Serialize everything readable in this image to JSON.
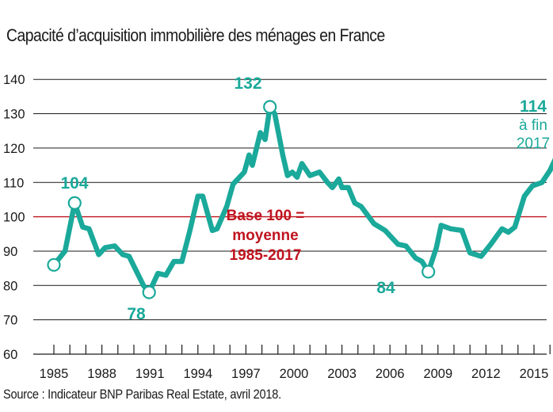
{
  "chart_data": {
    "type": "line",
    "title": "Capacité d’acquisition immobilière des ménages en France",
    "source": "Source : Indicateur BNP Paribas Real Estate, avril 2018.",
    "ylim": [
      60,
      140
    ],
    "yticks": [
      60,
      70,
      80,
      90,
      100,
      110,
      120,
      130,
      140
    ],
    "xlim": [
      1985,
      2018.5
    ],
    "xticks": [
      1985,
      1988,
      1991,
      1994,
      1997,
      2000,
      2003,
      2006,
      2009,
      2012,
      2015,
      2018
    ],
    "reference_line": {
      "y": 100,
      "color": "#c0141f"
    },
    "colors": {
      "line": "#1aa99a",
      "reference": "#c0141f",
      "grid": "#1a1a1a"
    },
    "series": [
      {
        "points": [
          [
            1985,
            86
          ],
          [
            1985.7,
            90
          ],
          [
            1986.3,
            104
          ],
          [
            1986.8,
            97
          ],
          [
            1987.2,
            96.5
          ],
          [
            1987.8,
            89
          ],
          [
            1988.2,
            91
          ],
          [
            1988.8,
            91.5
          ],
          [
            1989.3,
            89
          ],
          [
            1989.7,
            88.5
          ],
          [
            1990.6,
            80
          ],
          [
            1990.95,
            78
          ],
          [
            1991.5,
            83.5
          ],
          [
            1992.0,
            83
          ],
          [
            1992.5,
            87
          ],
          [
            1993.0,
            87
          ],
          [
            1993.5,
            96
          ],
          [
            1994.0,
            106
          ],
          [
            1994.3,
            106
          ],
          [
            1994.9,
            96
          ],
          [
            1995.2,
            96.5
          ],
          [
            1995.8,
            103
          ],
          [
            1996.2,
            109.5
          ],
          [
            1996.9,
            113
          ],
          [
            1997.2,
            118
          ],
          [
            1997.4,
            115
          ],
          [
            1997.9,
            124.5
          ],
          [
            1998.2,
            122.5
          ],
          [
            1998.5,
            132
          ],
          [
            1998.8,
            130
          ],
          [
            1999.3,
            118
          ],
          [
            1999.6,
            112
          ],
          [
            1999.9,
            113
          ],
          [
            2000.2,
            111.5
          ],
          [
            2000.5,
            115.5
          ],
          [
            2001.0,
            112
          ],
          [
            2001.6,
            113
          ],
          [
            2002.1,
            110
          ],
          [
            2002.4,
            108.5
          ],
          [
            2002.8,
            111
          ],
          [
            2003.0,
            108.5
          ],
          [
            2003.4,
            108.5
          ],
          [
            2003.8,
            104
          ],
          [
            2004.2,
            103
          ],
          [
            2005.0,
            98
          ],
          [
            2005.7,
            96
          ],
          [
            2006.5,
            92
          ],
          [
            2007.0,
            91.5
          ],
          [
            2007.6,
            88
          ],
          [
            2008.0,
            87
          ],
          [
            2008.4,
            84
          ],
          [
            2008.9,
            91
          ],
          [
            2009.2,
            97.5
          ],
          [
            2009.8,
            96.5
          ],
          [
            2010.5,
            96
          ],
          [
            2011.0,
            89.5
          ],
          [
            2011.7,
            88.5
          ],
          [
            2012.3,
            92
          ],
          [
            2013.0,
            96.5
          ],
          [
            2013.4,
            95.5
          ],
          [
            2013.8,
            97
          ],
          [
            2014.4,
            106
          ],
          [
            2014.9,
            109
          ],
          [
            2015.5,
            110
          ],
          [
            2016.0,
            113.5
          ],
          [
            2016.4,
            117.5
          ],
          [
            2016.9,
            114.5
          ],
          [
            2018.0,
            114.5
          ],
          [
            2018.3,
            114.5
          ]
        ]
      }
    ],
    "highlights": [
      {
        "x": 1985,
        "y": 86
      },
      {
        "x": 1986.3,
        "y": 104,
        "label": "104"
      },
      {
        "x": 1990.95,
        "y": 78,
        "label": "78"
      },
      {
        "x": 1998.5,
        "y": 132,
        "label": "132"
      },
      {
        "x": 2008.4,
        "y": 84,
        "label": "84"
      },
      {
        "x": 2018.3,
        "y": 114.5,
        "label": "114",
        "sublabel_1": "à fin",
        "sublabel_2": "2017"
      }
    ],
    "base_note": [
      "Base 100 =",
      "moyenne",
      "1985-2017"
    ]
  }
}
